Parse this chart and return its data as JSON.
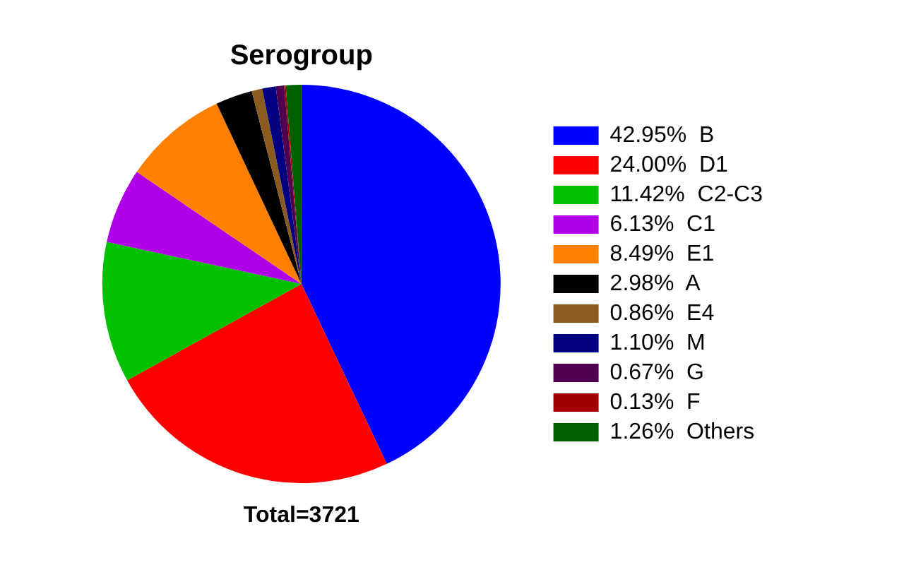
{
  "chart_data": {
    "type": "pie",
    "title": "Serogroup",
    "categories": [
      "B",
      "D1",
      "C2-C3",
      "C1",
      "E1",
      "A",
      "E4",
      "M",
      "G",
      "F",
      "Others"
    ],
    "values": [
      42.95,
      24.0,
      11.42,
      6.13,
      8.49,
      2.98,
      0.86,
      1.1,
      0.67,
      0.13,
      1.26
    ],
    "value_labels": [
      "42.95%",
      "24.00%",
      "11.42%",
      "6.13%",
      "8.49%",
      "2.98%",
      "0.86%",
      "1.10%",
      "0.67%",
      "0.13%",
      "1.26%"
    ],
    "colors": [
      "#0000ff",
      "#ff0000",
      "#00c000",
      "#b000e8",
      "#ff8000",
      "#000000",
      "#8b5a1e",
      "#000080",
      "#500050",
      "#a00000",
      "#006000"
    ],
    "legend": "right",
    "annotations": [
      "Total=3721"
    ]
  }
}
